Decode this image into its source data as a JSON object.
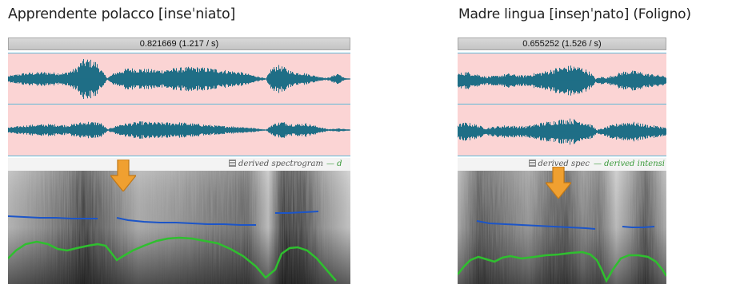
{
  "left": {
    "caption": "Apprendente polacco [inseˈniato]",
    "time_readout": "0.821669 (1.217 / s)",
    "legend_spectrogram": "derived spectrogram",
    "legend_intensity": "— d"
  },
  "right": {
    "caption": "Madre lingua [inseɲˈɲato] (Foligno)",
    "time_readout": "0.655252 (1.526 / s)",
    "legend_spectrogram": "derived spec",
    "legend_intensity": "— derived intensi"
  },
  "colors": {
    "waveform": "#1f6e86",
    "wave_background": "#fbd4d4",
    "pitch_line": "#1c55c8",
    "intensity_line": "#2fbf2f",
    "arrow": "#f0a030"
  },
  "icons": [
    "down-arrow-icon",
    "spectrogram-legend-icon"
  ]
}
